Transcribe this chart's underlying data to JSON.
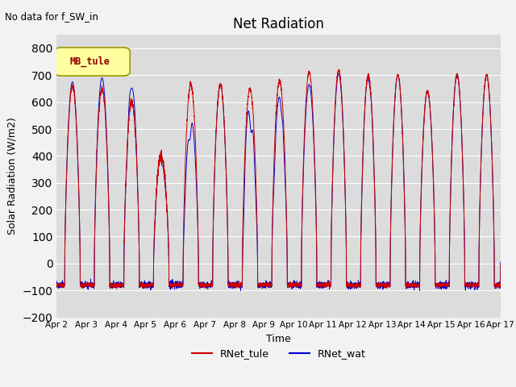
{
  "title": "Net Radiation",
  "xlabel": "Time",
  "ylabel": "Solar Radiation (W/m2)",
  "ylim": [
    -200,
    850
  ],
  "yticks": [
    -200,
    -100,
    0,
    100,
    200,
    300,
    400,
    500,
    600,
    700,
    800
  ],
  "note": "No data for f_SW_in",
  "legend_label": "MB_tule",
  "series1_label": "RNet_tule",
  "series2_label": "RNet_wat",
  "series1_color": "#cc0000",
  "series2_color": "#0000cc",
  "background_color": "#dcdcdc",
  "n_days": 15,
  "tule_peaks": [
    660,
    650,
    600,
    400,
    665,
    665,
    650,
    680,
    710,
    720,
    700,
    700,
    640,
    700,
    700
  ],
  "wat_peaks": [
    675,
    690,
    690,
    410,
    550,
    665,
    625,
    620,
    665,
    705,
    700,
    700,
    640,
    705,
    700
  ],
  "night_val": -80,
  "sunrise": 0.27,
  "sunset": 0.79
}
